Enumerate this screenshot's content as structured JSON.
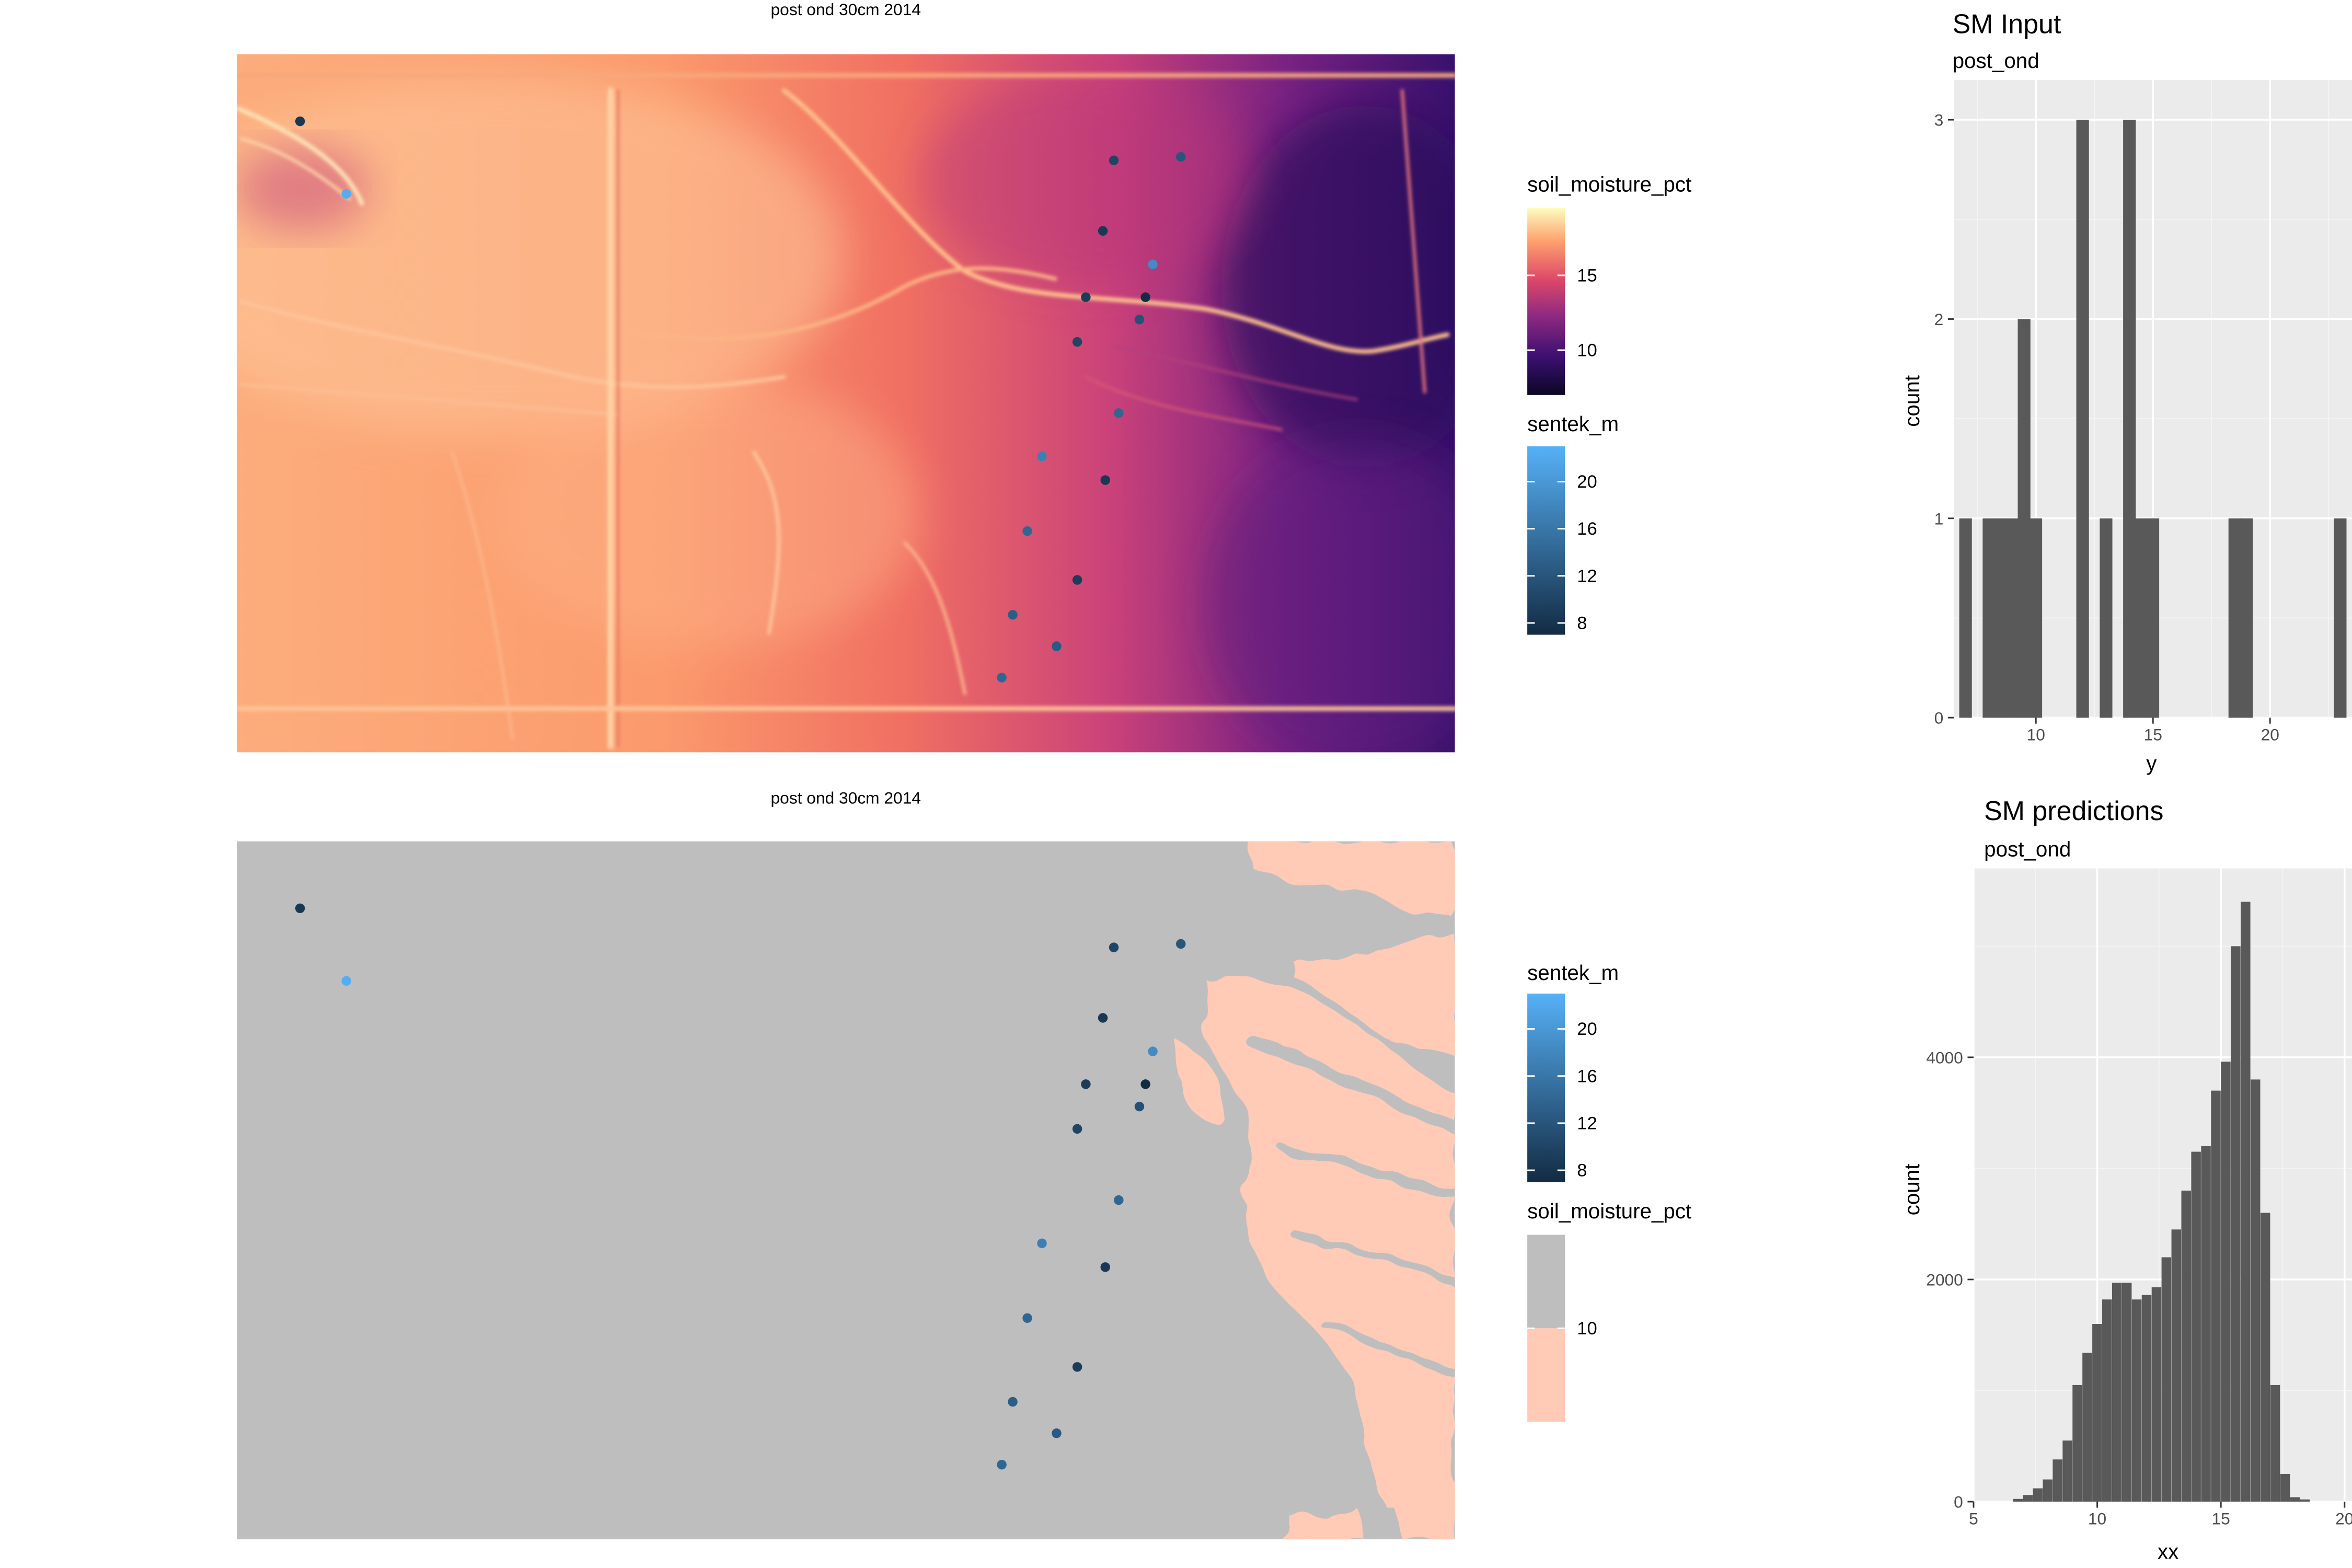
{
  "colors": {
    "panel_bg": "#ebebeb",
    "grid_major": "#ffffff",
    "grid_minor": "#f4f4f4",
    "bar_fill": "#595959",
    "axis_text": "#4d4d4d",
    "mask_above": "#bebebe",
    "mask_below": "#ffcab6",
    "magma": [
      "#0b0724",
      "#3b0f70",
      "#8c2981",
      "#de4968",
      "#fe9f6d",
      "#fcfdbf"
    ],
    "sentek": [
      "#132b43",
      "#56b1f7"
    ]
  },
  "chart_data": [
    {
      "type": "heatmap",
      "title": "post  ond  30cm  2014",
      "fill_variable": "soil_moisture_pct",
      "color_variable": "sentek_m",
      "legend_position": "right",
      "grid": false,
      "legends": [
        {
          "title": "soil_moisture_pct",
          "kind": "continuous",
          "palette": "magma",
          "range": [
            7,
            19.5
          ],
          "breaks": [
            15,
            10
          ]
        },
        {
          "title": "sentek_m",
          "kind": "continuous",
          "palette": "sentek",
          "range": [
            7,
            23
          ],
          "breaks": [
            20,
            16,
            12,
            8
          ]
        }
      ],
      "points": [
        {
          "x": 0.052,
          "y": 0.096,
          "sentek_m": 8.5
        },
        {
          "x": 0.09,
          "y": 0.2,
          "sentek_m": 22.5
        },
        {
          "x": 0.72,
          "y": 0.152,
          "sentek_m": 10.0
        },
        {
          "x": 0.775,
          "y": 0.147,
          "sentek_m": 12.0
        },
        {
          "x": 0.711,
          "y": 0.253,
          "sentek_m": 8.5
        },
        {
          "x": 0.752,
          "y": 0.301,
          "sentek_m": 18.5
        },
        {
          "x": 0.697,
          "y": 0.348,
          "sentek_m": 9.0
        },
        {
          "x": 0.746,
          "y": 0.348,
          "sentek_m": 7.0
        },
        {
          "x": 0.741,
          "y": 0.38,
          "sentek_m": 11.5
        },
        {
          "x": 0.69,
          "y": 0.412,
          "sentek_m": 10.0
        },
        {
          "x": 0.724,
          "y": 0.514,
          "sentek_m": 14.0
        },
        {
          "x": 0.661,
          "y": 0.576,
          "sentek_m": 17.0
        },
        {
          "x": 0.713,
          "y": 0.61,
          "sentek_m": 8.5
        },
        {
          "x": 0.649,
          "y": 0.683,
          "sentek_m": 14.0
        },
        {
          "x": 0.69,
          "y": 0.753,
          "sentek_m": 9.0
        },
        {
          "x": 0.637,
          "y": 0.803,
          "sentek_m": 13.0
        },
        {
          "x": 0.673,
          "y": 0.848,
          "sentek_m": 12.5
        },
        {
          "x": 0.628,
          "y": 0.893,
          "sentek_m": 14.0
        }
      ]
    },
    {
      "type": "heatmap",
      "title": "post  ond  30cm  2014",
      "fill_variable": "soil_moisture_pct",
      "color_variable": "sentek_m",
      "legend_position": "right",
      "grid": false,
      "legends": [
        {
          "title": "sentek_m",
          "kind": "continuous",
          "palette": "sentek",
          "range": [
            7,
            23
          ],
          "breaks": [
            20,
            16,
            12,
            8
          ]
        },
        {
          "title": "soil_moisture_pct",
          "kind": "binned",
          "threshold": 10,
          "colors": [
            "#bebebe",
            "#ffcab6"
          ],
          "breaks": [
            10
          ]
        }
      ]
    },
    {
      "type": "bar",
      "title": "SM Input",
      "subtitle": "post_ond",
      "xlabel": "y",
      "ylabel": "count",
      "xlim": [
        6.5,
        23.5
      ],
      "ylim": [
        0,
        3.2
      ],
      "xticks": [
        10,
        15,
        20
      ],
      "yticks": [
        0,
        1,
        2,
        3
      ],
      "grid": true,
      "bins": [
        {
          "x": 7.0,
          "count": 1
        },
        {
          "x": 8.0,
          "count": 1
        },
        {
          "x": 8.5,
          "count": 1
        },
        {
          "x": 9.0,
          "count": 1
        },
        {
          "x": 9.5,
          "count": 2
        },
        {
          "x": 10.0,
          "count": 1
        },
        {
          "x": 12.0,
          "count": 3
        },
        {
          "x": 13.0,
          "count": 1
        },
        {
          "x": 14.0,
          "count": 3
        },
        {
          "x": 14.5,
          "count": 1
        },
        {
          "x": 15.0,
          "count": 1
        },
        {
          "x": 18.5,
          "count": 1
        },
        {
          "x": 19.0,
          "count": 1
        },
        {
          "x": 23.0,
          "count": 1
        }
      ],
      "binwidth": 0.55
    },
    {
      "type": "bar",
      "title": "SM predictions",
      "subtitle": "post_ond",
      "xlabel": "xx",
      "ylabel": "count",
      "xlim": [
        5,
        20.3
      ],
      "ylim": [
        0,
        5700
      ],
      "xticks": [
        5,
        10,
        15,
        20
      ],
      "yticks": [
        0,
        2000,
        4000
      ],
      "grid": true,
      "binwidth": 0.4,
      "bins": [
        {
          "x": 6.8,
          "count": 25
        },
        {
          "x": 7.2,
          "count": 60
        },
        {
          "x": 7.6,
          "count": 120
        },
        {
          "x": 8.0,
          "count": 200
        },
        {
          "x": 8.4,
          "count": 380
        },
        {
          "x": 8.8,
          "count": 550
        },
        {
          "x": 9.2,
          "count": 1050
        },
        {
          "x": 9.6,
          "count": 1340
        },
        {
          "x": 10.0,
          "count": 1600
        },
        {
          "x": 10.4,
          "count": 1820
        },
        {
          "x": 10.8,
          "count": 1970
        },
        {
          "x": 11.2,
          "count": 1970
        },
        {
          "x": 11.6,
          "count": 1820
        },
        {
          "x": 12.0,
          "count": 1860
        },
        {
          "x": 12.4,
          "count": 1930
        },
        {
          "x": 12.8,
          "count": 2200
        },
        {
          "x": 13.2,
          "count": 2450
        },
        {
          "x": 13.6,
          "count": 2800
        },
        {
          "x": 14.0,
          "count": 3150
        },
        {
          "x": 14.4,
          "count": 3200
        },
        {
          "x": 14.8,
          "count": 3700
        },
        {
          "x": 15.2,
          "count": 3960
        },
        {
          "x": 15.6,
          "count": 5000
        },
        {
          "x": 16.0,
          "count": 5400
        },
        {
          "x": 16.4,
          "count": 3800
        },
        {
          "x": 16.8,
          "count": 2600
        },
        {
          "x": 17.2,
          "count": 1050
        },
        {
          "x": 17.6,
          "count": 250
        },
        {
          "x": 18.0,
          "count": 40
        },
        {
          "x": 18.4,
          "count": 20
        }
      ]
    }
  ]
}
